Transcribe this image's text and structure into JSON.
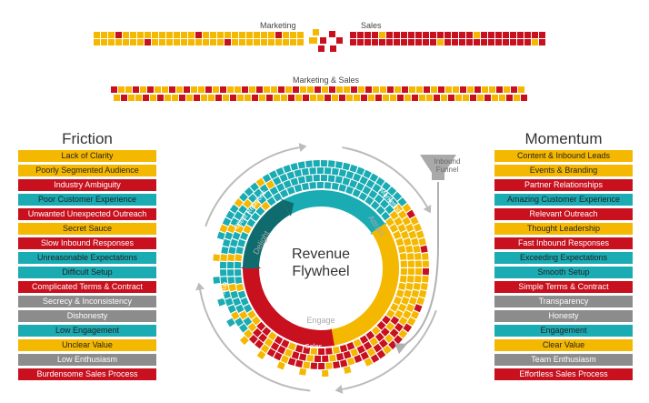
{
  "colors": {
    "yellow": "#f5b800",
    "red": "#c8101e",
    "teal": "#1aabb3",
    "darkteal": "#0f6b6e",
    "grey": "#8c8c8c",
    "lightgrey": "#bbbbbb"
  },
  "top_labels": {
    "marketing": "Marketing",
    "sales": "Sales",
    "marketing_sales": "Marketing & Sales"
  },
  "friction": {
    "title": "Friction",
    "items": [
      {
        "label": "Lack of Clarity",
        "color": "yellow"
      },
      {
        "label": "Poorly Segmented Audience",
        "color": "yellow"
      },
      {
        "label": "Industry Ambiguity",
        "color": "red"
      },
      {
        "label": "Poor Customer Experience",
        "color": "teal"
      },
      {
        "label": "Unwanted Unexpected Outreach",
        "color": "red"
      },
      {
        "label": "Secret Sauce",
        "color": "yellow"
      },
      {
        "label": "Slow Inbound Responses",
        "color": "red"
      },
      {
        "label": "Unreasonable Expectations",
        "color": "teal"
      },
      {
        "label": "Difficult Setup",
        "color": "teal"
      },
      {
        "label": "Complicated Terms & Contract",
        "color": "red"
      },
      {
        "label": "Secrecy & Inconsistency",
        "color": "grey"
      },
      {
        "label": "Dishonesty",
        "color": "grey"
      },
      {
        "label": "Low Engagement",
        "color": "teal"
      },
      {
        "label": "Unclear Value",
        "color": "yellow"
      },
      {
        "label": "Low Enthusiasm",
        "color": "grey"
      },
      {
        "label": "Burdensome Sales Process",
        "color": "red"
      }
    ]
  },
  "momentum": {
    "title": "Momentum",
    "items": [
      {
        "label": "Content & Inbound Leads",
        "color": "yellow"
      },
      {
        "label": "Events & Branding",
        "color": "yellow"
      },
      {
        "label": "Partner Relationships",
        "color": "red"
      },
      {
        "label": "Amazing Customer Experience",
        "color": "teal"
      },
      {
        "label": "Relevant Outreach",
        "color": "red"
      },
      {
        "label": "Thought Leadership",
        "color": "yellow"
      },
      {
        "label": "Fast Inbound Responses",
        "color": "red"
      },
      {
        "label": "Exceeding Expectations",
        "color": "teal"
      },
      {
        "label": "Smooth Setup",
        "color": "teal"
      },
      {
        "label": "Simple Terms & Contract",
        "color": "red"
      },
      {
        "label": "Transparency",
        "color": "grey"
      },
      {
        "label": "Honesty",
        "color": "grey"
      },
      {
        "label": "Engagement",
        "color": "teal"
      },
      {
        "label": "Clear Value",
        "color": "yellow"
      },
      {
        "label": "Team Enthusiasm",
        "color": "grey"
      },
      {
        "label": "Effortless Sales Process",
        "color": "red"
      }
    ]
  },
  "flywheel": {
    "title_line1": "Revenue",
    "title_line2": "Flywheel",
    "inner_labels": {
      "delight": "Delight",
      "attract": "Attract",
      "engage": "Engage"
    },
    "segment_labels": {
      "client_relations": "Client Relations",
      "marketing": "Marketing",
      "sales": "Sales",
      "setup": "Setup"
    },
    "funnel_line1": "Inbound",
    "funnel_line2": "Funnel"
  }
}
